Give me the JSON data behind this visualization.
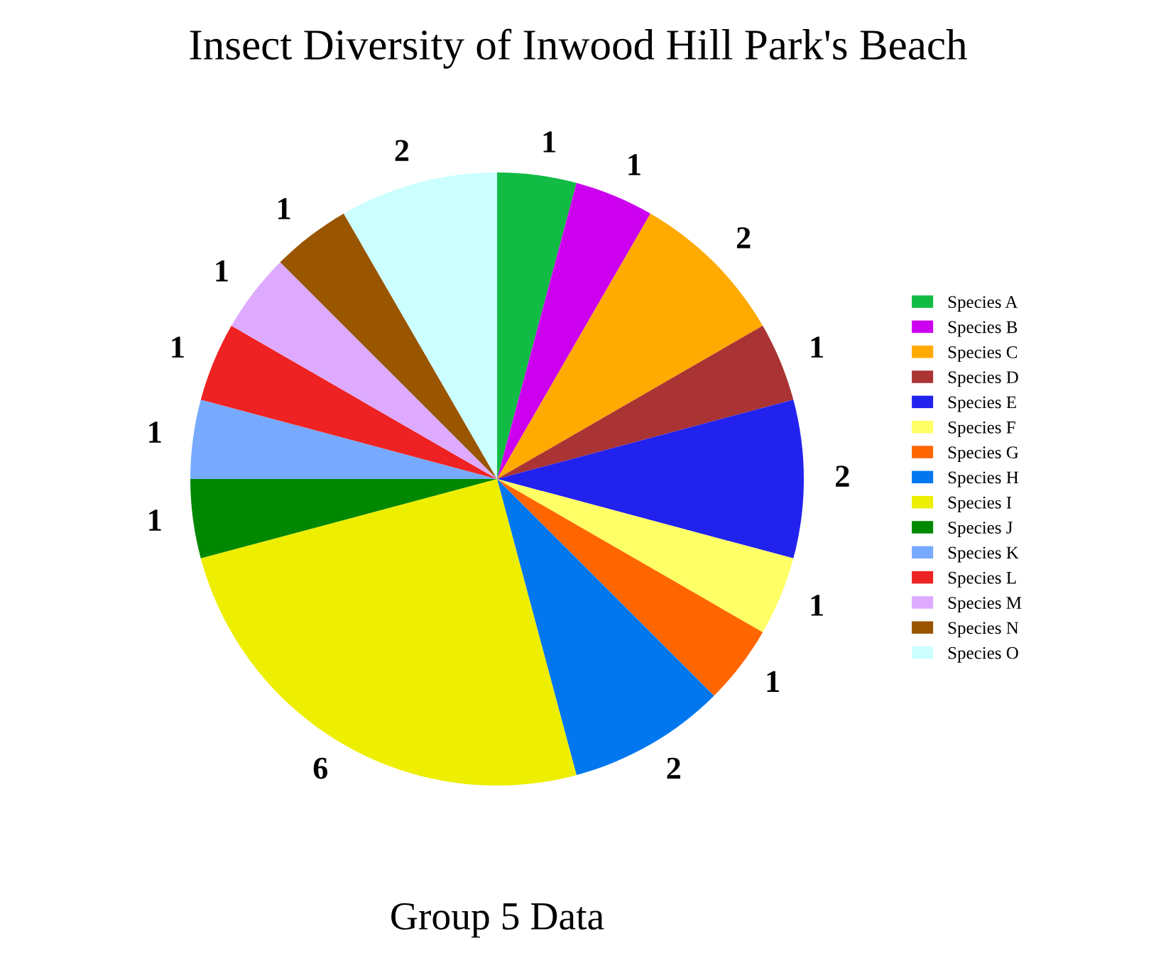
{
  "chart_data": {
    "type": "pie",
    "title": "Insect Diversity of Inwood Hill Park's Beach",
    "xlabel": "Group 5 Data",
    "categories": [
      "Species A",
      "Species B",
      "Species C",
      "Species D",
      "Species E",
      "Species F",
      "Species G",
      "Species H",
      "Species I",
      "Species J",
      "Species K",
      "Species L",
      "Species M",
      "Species N",
      "Species O"
    ],
    "values": [
      1,
      1,
      2,
      1,
      2,
      1,
      1,
      2,
      6,
      1,
      1,
      1,
      1,
      1,
      2
    ],
    "colors": [
      "#11bb44",
      "#cc00ee",
      "#ffaa00",
      "#aa3333",
      "#2222ee",
      "#ffff66",
      "#ff6600",
      "#0077ee",
      "#eeee00",
      "#008800",
      "#77aaff",
      "#ee2222",
      "#ddaaff",
      "#995500",
      "#ccffff"
    ],
    "data_labels": true,
    "legend": "right"
  }
}
